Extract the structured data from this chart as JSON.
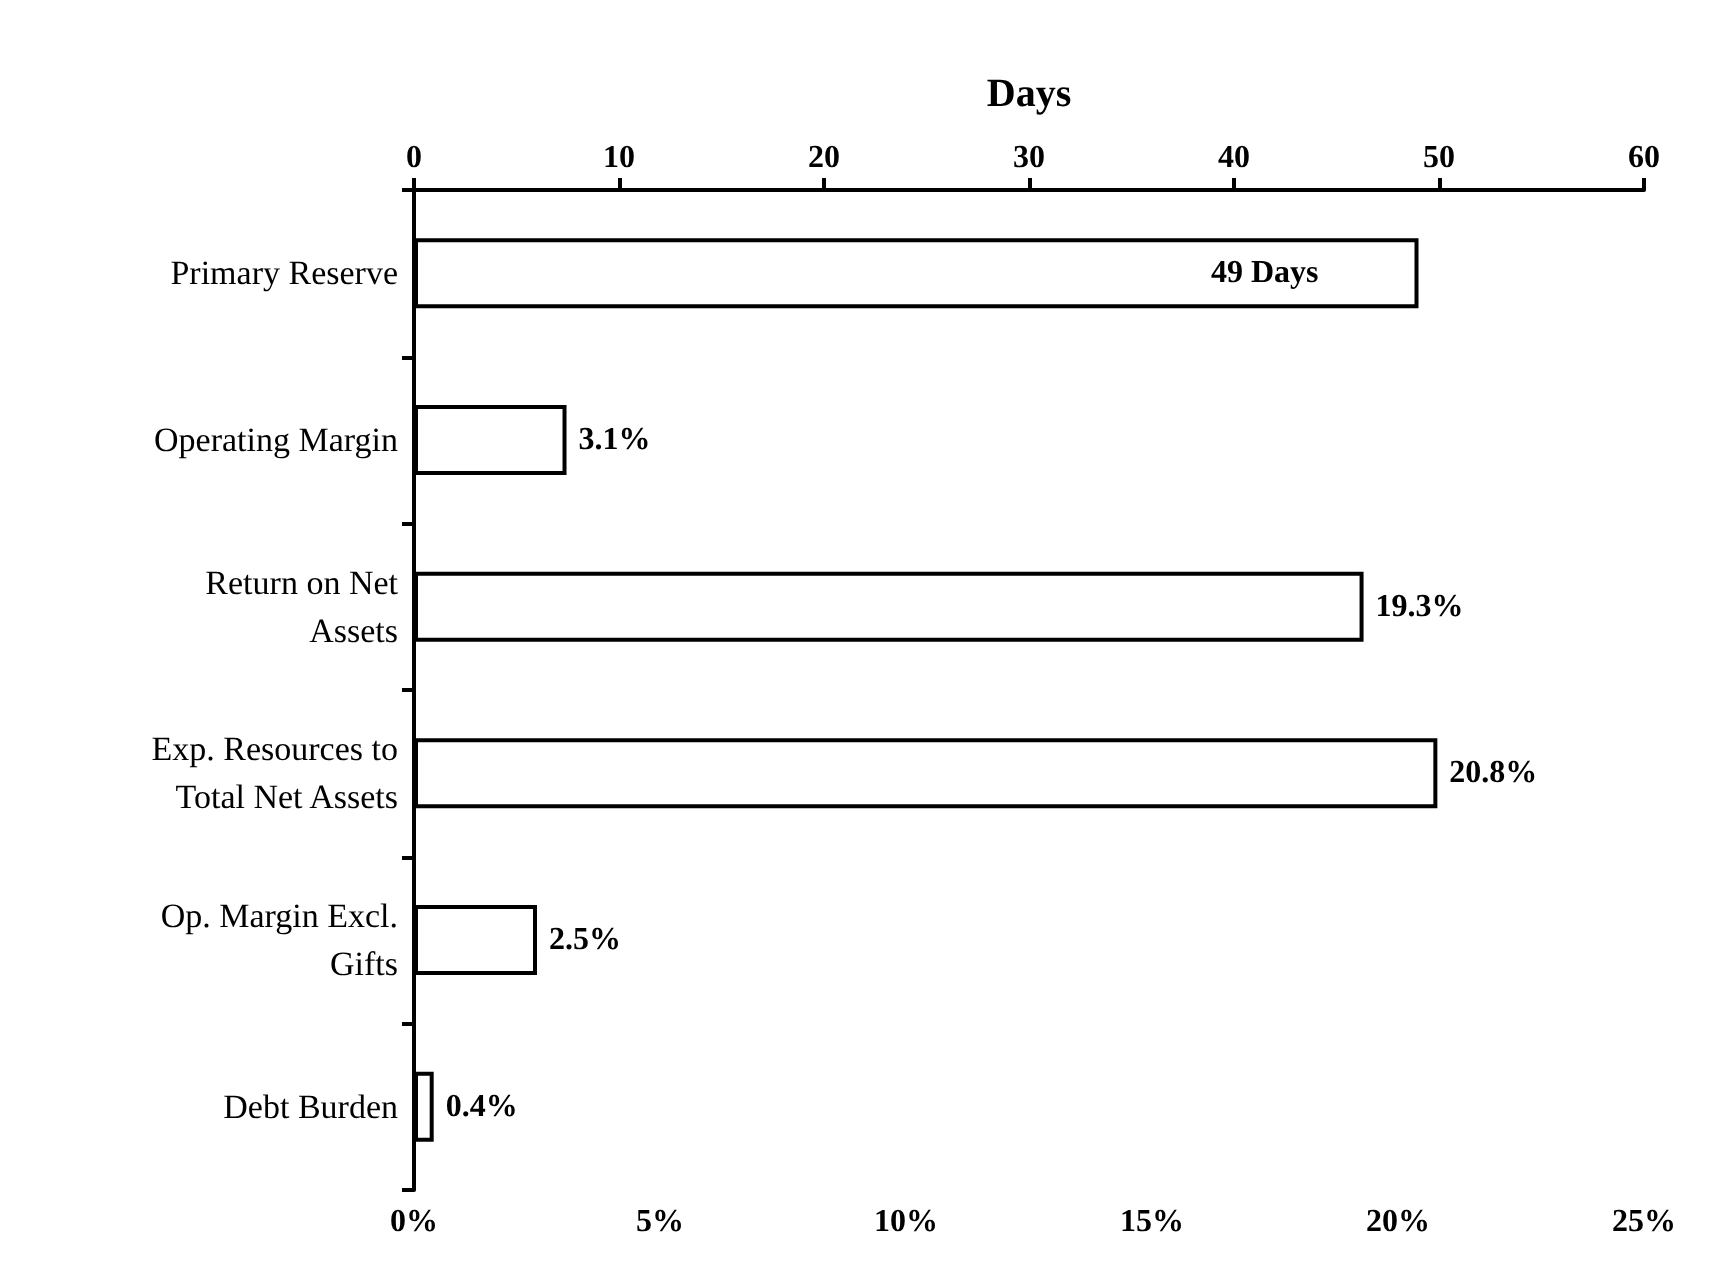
{
  "chart_data": {
    "type": "bar",
    "orientation": "horizontal",
    "x2label": "Days",
    "categories": [
      "Primary Reserve",
      "Operating Margin",
      "Return on Net\nAssets",
      "Exp. Resources to\nTotal Net Assets",
      "Op. Margin Excl.\nGifts",
      "Debt Burden"
    ],
    "series": [
      {
        "axis": "x2",
        "color": "#ffffff",
        "values": [
          49,
          null,
          null,
          null,
          null,
          null
        ],
        "value_labels": [
          "49 Days",
          null,
          null,
          null,
          null,
          null
        ]
      },
      {
        "color": "#ffffff",
        "values": [
          null,
          3.1,
          19.3,
          20.8,
          2.5,
          0.4
        ],
        "value_labels": [
          null,
          "3.1%",
          "19.3%",
          "20.8%",
          "2.5%",
          "0.4%"
        ]
      }
    ],
    "xlim": [
      0,
      25
    ],
    "xticks": [
      {
        "value": 0,
        "label": "0%"
      },
      {
        "value": 5,
        "label": "5%"
      },
      {
        "value": 10,
        "label": "10%"
      },
      {
        "value": 15,
        "label": "15%"
      },
      {
        "value": 20,
        "label": "20%"
      },
      {
        "value": 25,
        "label": "25%"
      }
    ],
    "x2lim": [
      0,
      60
    ],
    "x2ticks": [
      0,
      10,
      20,
      30,
      40,
      50,
      60
    ],
    "grid": false
  }
}
